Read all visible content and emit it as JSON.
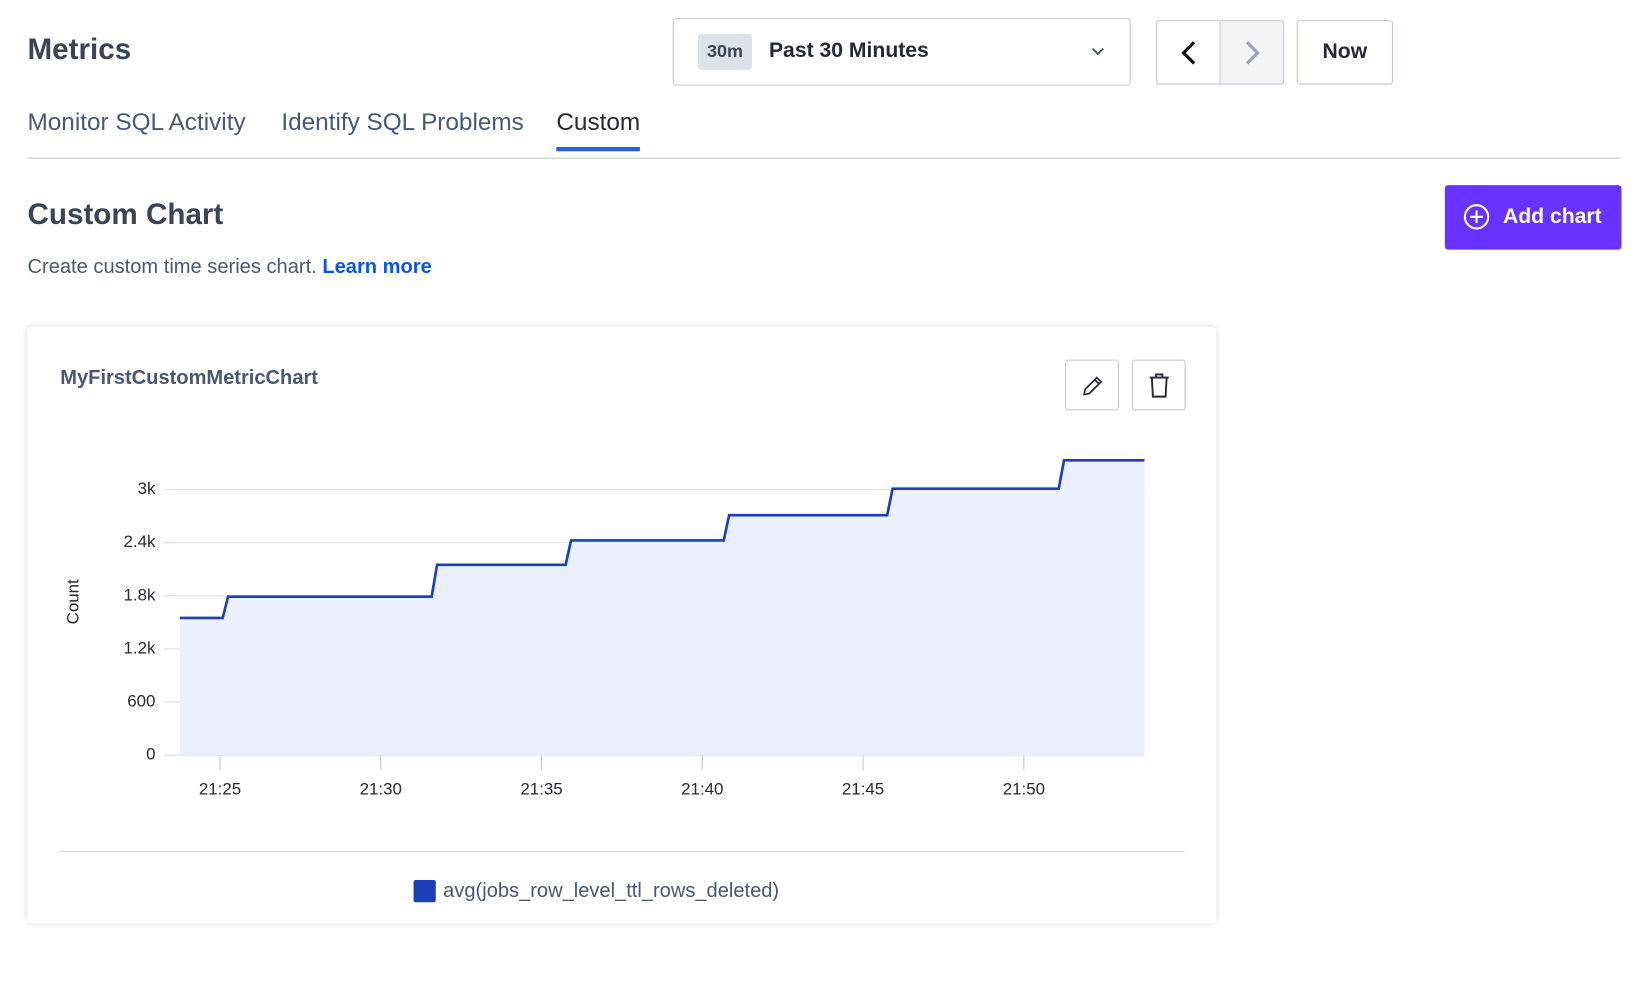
{
  "header": {
    "title": "Metrics"
  },
  "time_picker": {
    "badge": "30m",
    "label": "Past 30 Minutes",
    "now_button": "Now"
  },
  "tabs": {
    "items": [
      "Monitor SQL Activity",
      "Identify SQL Problems",
      "Custom"
    ],
    "active": 2
  },
  "section": {
    "title": "Custom Chart",
    "description": "Create custom time series chart.",
    "link": "Learn more",
    "add_button": "Add chart"
  },
  "chart_data": {
    "type": "line",
    "title": "MyFirstCustomMetricChart",
    "ylabel": "Count",
    "x": [
      "21:23:45",
      "21:25:05",
      "21:25:15",
      "21:31:35",
      "21:31:45",
      "21:35:45",
      "21:35:55",
      "21:40:40",
      "21:40:50",
      "21:45:45",
      "21:45:55",
      "21:51:05",
      "21:51:15",
      "21:53:45"
    ],
    "series": [
      {
        "name": "avg(jobs_row_level_ttl_rows_deleted)",
        "color": "#1b3fb7",
        "fill": "#ebf0fc",
        "values": [
          1550,
          1550,
          1790,
          1790,
          2150,
          2150,
          2425,
          2425,
          2710,
          2710,
          3010,
          3010,
          3330,
          3330
        ]
      }
    ],
    "xlim": [
      "21:23:45",
      "21:53:45"
    ],
    "xticks": [
      "21:25",
      "21:30",
      "21:35",
      "21:40",
      "21:45",
      "21:50"
    ],
    "ylim": [
      0,
      3500
    ],
    "yticks": [
      0,
      600,
      {
        "value": 1200,
        "label": "1.2k"
      },
      {
        "value": 1800,
        "label": "1.8k"
      },
      {
        "value": 2400,
        "label": "2.4k"
      },
      {
        "value": 3000,
        "label": "3k"
      }
    ],
    "grid": true
  }
}
